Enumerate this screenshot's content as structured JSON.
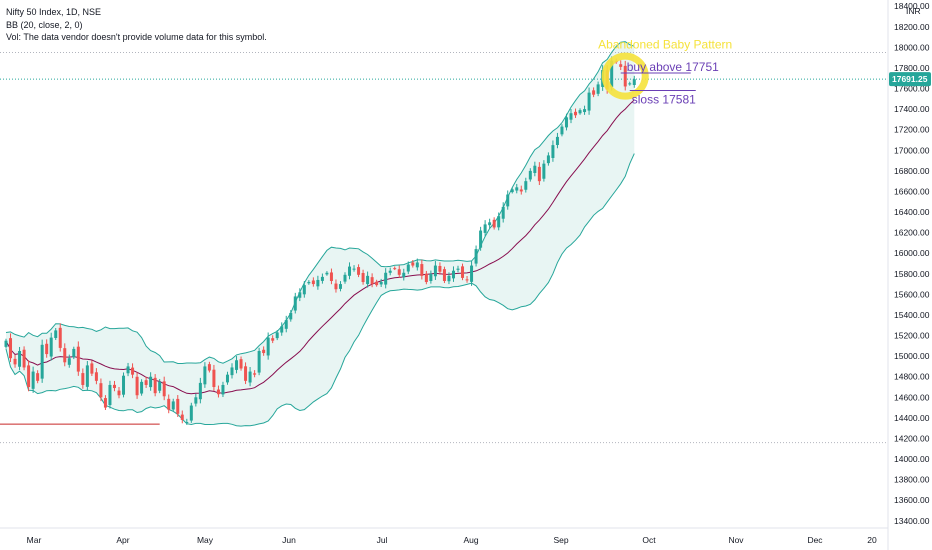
{
  "header": {
    "line1": "Nifty 50 Index, 1D, NSE",
    "line2": "BB (20, close, 2, 0)",
    "line3": "Vol: The data vendor doesn't provide volume data for this symbol."
  },
  "currency_label": "INR",
  "price_badge": {
    "label": "17691.25",
    "value": 17691.25,
    "color": "#26a69a"
  },
  "colors": {
    "up": "#26a69a",
    "down": "#ef5350",
    "band": "#26a69a",
    "band_fill": "#e8f5f3",
    "basis": "#880e4f",
    "annotation_yellow": "#f5e23b",
    "annotation_purple": "#6a3fb5",
    "hline_red": "#c62828",
    "dotted": "#b2b5be"
  },
  "annotations": {
    "pattern_label": "Abandoned Baby  Pattern",
    "buy_label": "buy above 17751",
    "sloss_label": "sloss 17581",
    "buy_level": 17751,
    "sloss_level": 17581
  },
  "chart_data": {
    "type": "candlestick",
    "title": "Nifty 50 Index, 1D, NSE",
    "indicator": "BB (20, close, 2, 0)",
    "x_tick_labels": [
      "Mar",
      "Apr",
      "May",
      "Jun",
      "Jul",
      "Aug",
      "Sep",
      "Oct",
      "Nov",
      "Dec",
      "20"
    ],
    "y_tick_labels": [
      "13400.00",
      "13600.00",
      "13800.00",
      "14000.00",
      "14200.00",
      "14400.00",
      "14600.00",
      "14800.00",
      "15000.00",
      "15200.00",
      "15400.00",
      "15600.00",
      "15800.00",
      "16000.00",
      "16200.00",
      "16400.00",
      "16600.00",
      "16800.00",
      "17000.00",
      "17200.00",
      "17400.00",
      "17600.00",
      "17800.00",
      "18000.00",
      "18200.00",
      "18400.00"
    ],
    "ylim": [
      13340,
      18460
    ],
    "reference_lines": {
      "upper_dotted": 17950,
      "lower_dotted": 14160,
      "last_price": 17691.25,
      "red_support": 14340
    },
    "closes": [
      15150,
      14980,
      14920,
      15050,
      14890,
      14700,
      14850,
      14760,
      15110,
      15020,
      15180,
      15250,
      15080,
      14940,
      14980,
      15070,
      14850,
      14720,
      14910,
      14830,
      14760,
      14600,
      14500,
      14720,
      14690,
      14620,
      14810,
      14900,
      14820,
      14620,
      14750,
      14720,
      14800,
      14640,
      14750,
      14610,
      14480,
      14560,
      14440,
      14380,
      14360,
      14520,
      14600,
      14740,
      14900,
      14860,
      14700,
      14630,
      14720,
      14820,
      14890,
      14960,
      14880,
      14760,
      14850,
      14820,
      15050,
      15030,
      15180,
      15150,
      15230,
      15290,
      15350,
      15420,
      15580,
      15620,
      15690,
      15720,
      15700,
      15740,
      15770,
      15810,
      15730,
      15650,
      15700,
      15790,
      15870,
      15850,
      15790,
      15720,
      15780,
      15700,
      15690,
      15720,
      15810,
      15830,
      15850,
      15790,
      15810,
      15890,
      15880,
      15910,
      15780,
      15720,
      15800,
      15880,
      15820,
      15730,
      15780,
      15830,
      15850,
      15760,
      15740,
      15880,
      16040,
      16220,
      16280,
      16300,
      16250,
      16360,
      16450,
      16570,
      16620,
      16640,
      16600,
      16700,
      16800,
      16850,
      16700,
      16870,
      16950,
      17050,
      17130,
      17230,
      17320,
      17360,
      17340,
      17390,
      17400,
      17560,
      17540,
      17640,
      17780,
      17590,
      17870,
      17860,
      17810,
      17620,
      17650,
      17690
    ]
  }
}
